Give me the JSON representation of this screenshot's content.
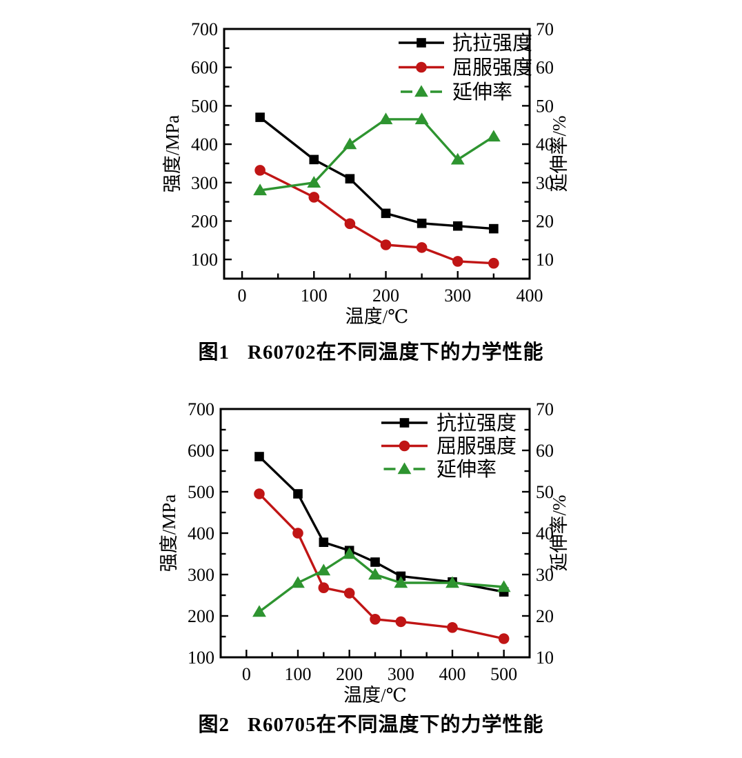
{
  "page": {
    "background": "#ffffff"
  },
  "chart_data": [
    {
      "type": "line",
      "caption": {
        "label": "图1",
        "text": "R60702在不同温度下的力学性能"
      },
      "xlabel": "温度/℃",
      "ylabel_left": "强度/MPa",
      "ylabel_right": "延伸率/%",
      "xlim": [
        -25,
        400
      ],
      "x_ticks": [
        0,
        100,
        200,
        300,
        400
      ],
      "minor_x_step": 50,
      "ylim_left": [
        50,
        700
      ],
      "left_ticks": [
        100,
        200,
        300,
        400,
        500,
        600,
        700
      ],
      "minor_left_step": 50,
      "ylim_right": [
        5,
        70
      ],
      "right_ticks": [
        10,
        20,
        30,
        40,
        50,
        60,
        70
      ],
      "minor_right_step": 5,
      "legend_position": "top-right",
      "grid": false,
      "x": [
        25,
        100,
        150,
        200,
        250,
        300,
        350
      ],
      "series": [
        {
          "name": "抗拉强度",
          "axis": "left",
          "marker": "square",
          "color": "#000000",
          "values": [
            470,
            360,
            310,
            220,
            194,
            187,
            180
          ]
        },
        {
          "name": "屈服强度",
          "axis": "left",
          "marker": "circle",
          "color": "#c01515",
          "values": [
            332,
            262,
            193,
            138,
            131,
            95,
            90
          ]
        },
        {
          "name": "延伸率",
          "axis": "right",
          "marker": "triangle",
          "color": "#2e9430",
          "values": [
            28,
            30,
            40,
            46.5,
            46.5,
            36,
            42
          ]
        }
      ]
    },
    {
      "type": "line",
      "caption": {
        "label": "图2",
        "text": "R60705在不同温度下的力学性能"
      },
      "xlabel": "温度/℃",
      "ylabel_left": "强度/MPa",
      "ylabel_right": "延伸率/%",
      "xlim": [
        -50,
        550
      ],
      "x_ticks": [
        0,
        100,
        200,
        300,
        400,
        500
      ],
      "minor_x_step": 50,
      "ylim_left": [
        100,
        700
      ],
      "left_ticks": [
        100,
        200,
        300,
        400,
        500,
        600,
        700
      ],
      "minor_left_step": 50,
      "ylim_right": [
        10,
        70
      ],
      "right_ticks": [
        10,
        20,
        30,
        40,
        50,
        60,
        70
      ],
      "minor_right_step": 5,
      "legend_position": "top-right",
      "grid": false,
      "x": [
        25,
        100,
        150,
        200,
        250,
        300,
        400,
        500
      ],
      "series": [
        {
          "name": "抗拉强度",
          "axis": "left",
          "marker": "square",
          "color": "#000000",
          "values": [
            585,
            495,
            378,
            358,
            330,
            296,
            282,
            258
          ]
        },
        {
          "name": "屈服强度",
          "axis": "left",
          "marker": "circle",
          "color": "#c01515",
          "values": [
            495,
            400,
            268,
            255,
            192,
            186,
            172,
            145
          ]
        },
        {
          "name": "延伸率",
          "axis": "right",
          "marker": "triangle",
          "color": "#2e9430",
          "values": [
            21,
            28,
            31,
            35,
            30,
            28,
            28,
            27
          ]
        }
      ]
    }
  ]
}
